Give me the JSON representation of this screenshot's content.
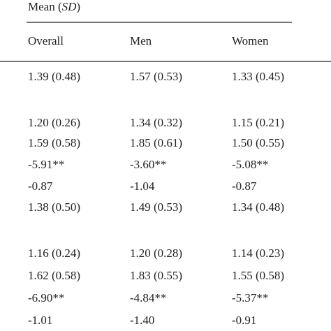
{
  "header": {
    "parts": [
      "Mean (",
      "SD",
      ")"
    ]
  },
  "table": {
    "columns": [
      "Overall",
      "Men",
      "Women"
    ],
    "rows": [
      [
        "1.39 (0.48)",
        "1.57 (0.53)",
        "1.33 (0.45)"
      ],
      [
        "1.20 (0.26)",
        "1.34 (0.32)",
        "1.15 (0.21)"
      ],
      [
        "1.59 (0.58)",
        "1.85 (0.61)",
        "1.50 (0.55)"
      ],
      [
        "-5.91**",
        "-3.60**",
        "-5.08**"
      ],
      [
        "-0.87",
        "-1.04",
        "-0.87"
      ],
      [
        "1.38 (0.50)",
        "1.49 (0.53)",
        "1.34 (0.48)"
      ],
      [
        "1.16 (0.24)",
        "1.20 (0.28)",
        "1.14 (0.23)"
      ],
      [
        "1.62 (0.58)",
        "1.83 (0.55)",
        "1.55 (0.58)"
      ],
      [
        "-6.90**",
        "-4.84**",
        "-5.37**"
      ],
      [
        "-1.01",
        "-1.40",
        "-0.91"
      ]
    ]
  }
}
